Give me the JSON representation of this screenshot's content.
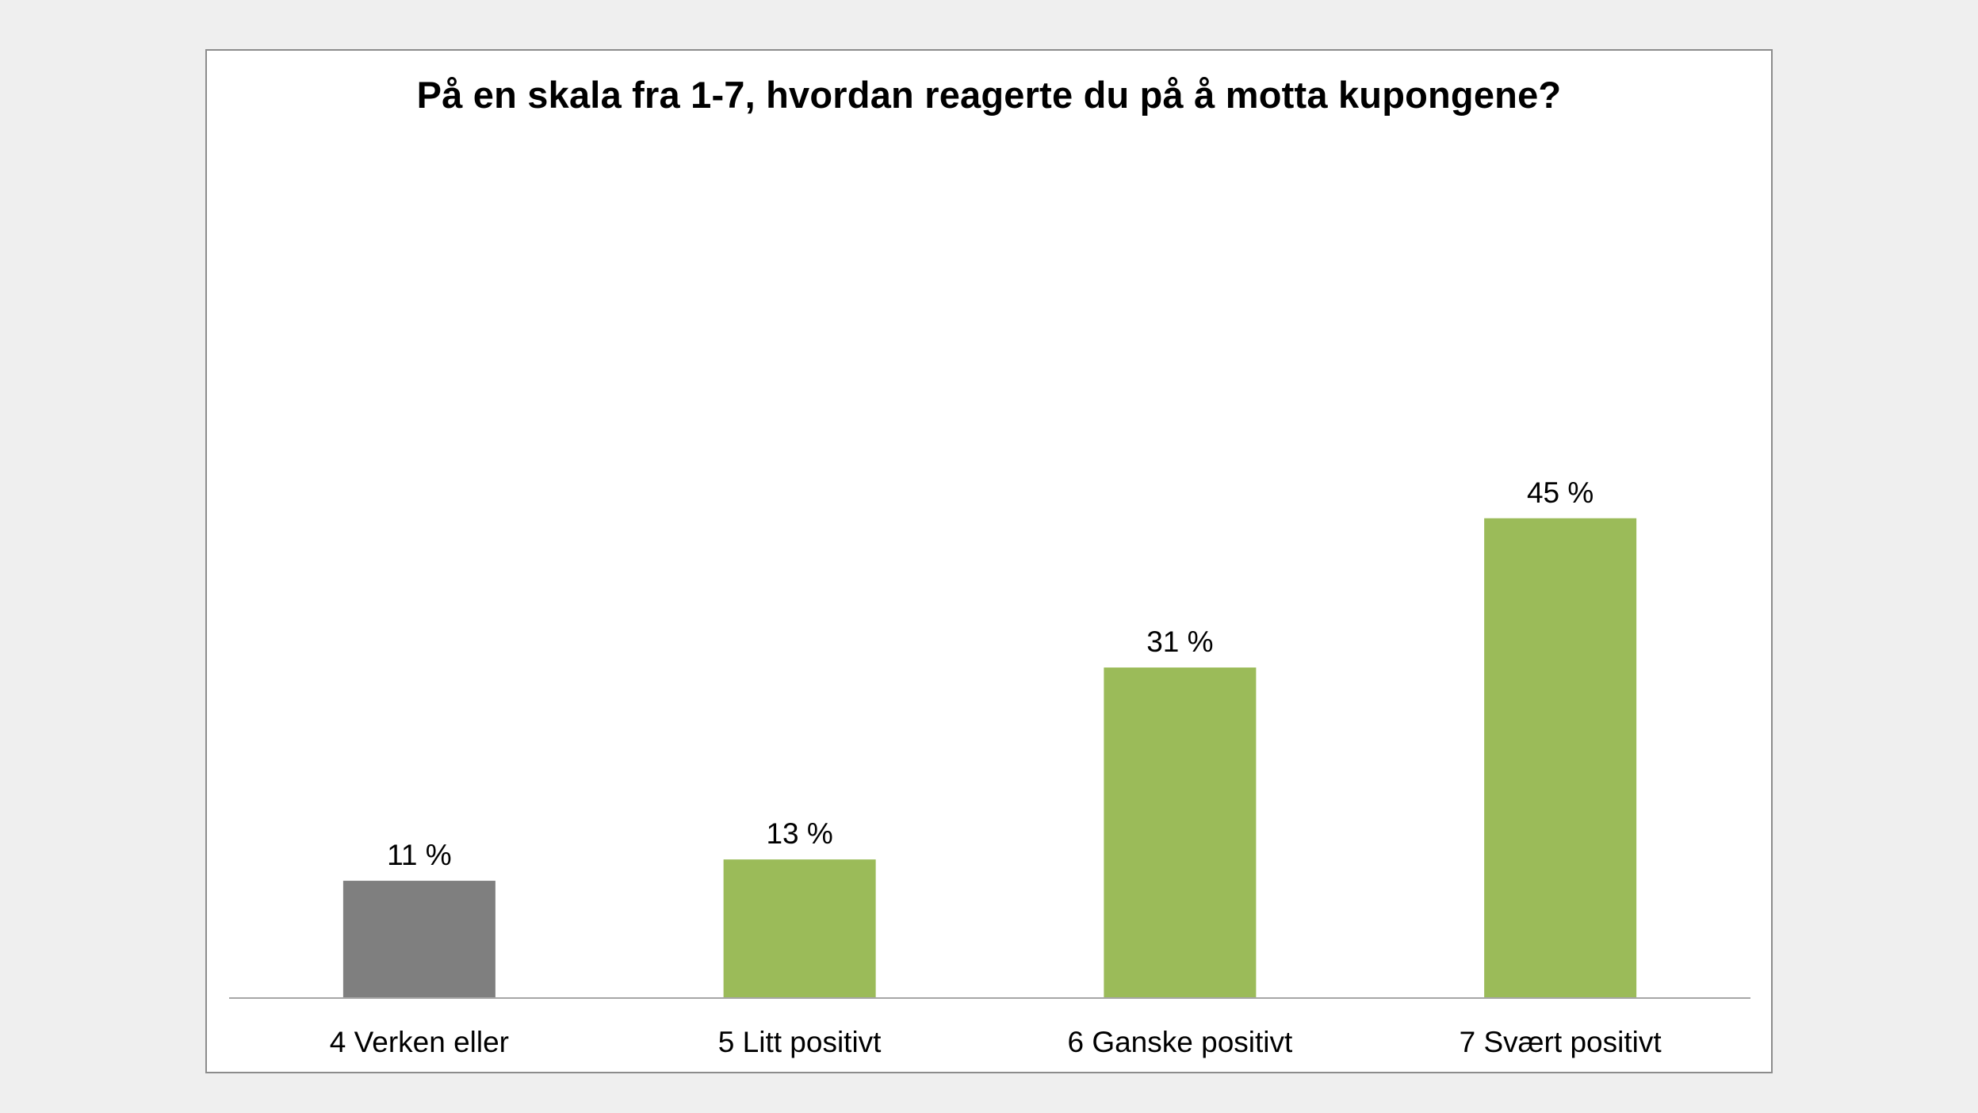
{
  "chart_data": {
    "type": "bar",
    "title": "På en skala fra 1-7, hvordan reagerte du på å motta kupongene?",
    "categories": [
      "4 Verken eller",
      "5 Litt positivt",
      "6 Ganske positivt",
      "7 Svært positivt"
    ],
    "values": [
      11,
      13,
      31,
      45
    ],
    "value_labels": [
      "11 %",
      "13 %",
      "31 %",
      "45 %"
    ],
    "colors": [
      "#7f7f7f",
      "#9bbb59",
      "#9bbb59",
      "#9bbb59"
    ],
    "xlabel": "",
    "ylabel": "",
    "ylim": [
      0,
      50
    ],
    "grid": false,
    "legend": "none"
  }
}
